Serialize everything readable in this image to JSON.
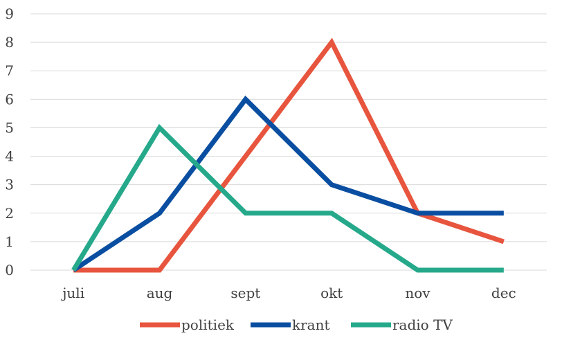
{
  "chart_data": {
    "type": "line",
    "title": "",
    "xlabel": "",
    "ylabel": "",
    "categories": [
      "juli",
      "aug",
      "sept",
      "okt",
      "nov",
      "dec"
    ],
    "ylim": [
      0,
      9
    ],
    "yticks": [
      "0",
      "1",
      "2",
      "3",
      "4",
      "5",
      "6",
      "7",
      "8",
      "9"
    ],
    "grid": true,
    "legend_position": "bottom",
    "series": [
      {
        "name": "politiek",
        "color": "#e8553e",
        "values": [
          0,
          0,
          4,
          8,
          2,
          1
        ]
      },
      {
        "name": "krant",
        "color": "#0a4ea1",
        "values": [
          0,
          2,
          6,
          3,
          2,
          2
        ]
      },
      {
        "name": "radio TV",
        "color": "#26a98b",
        "values": [
          0,
          5,
          2,
          2,
          0,
          0
        ]
      }
    ]
  }
}
